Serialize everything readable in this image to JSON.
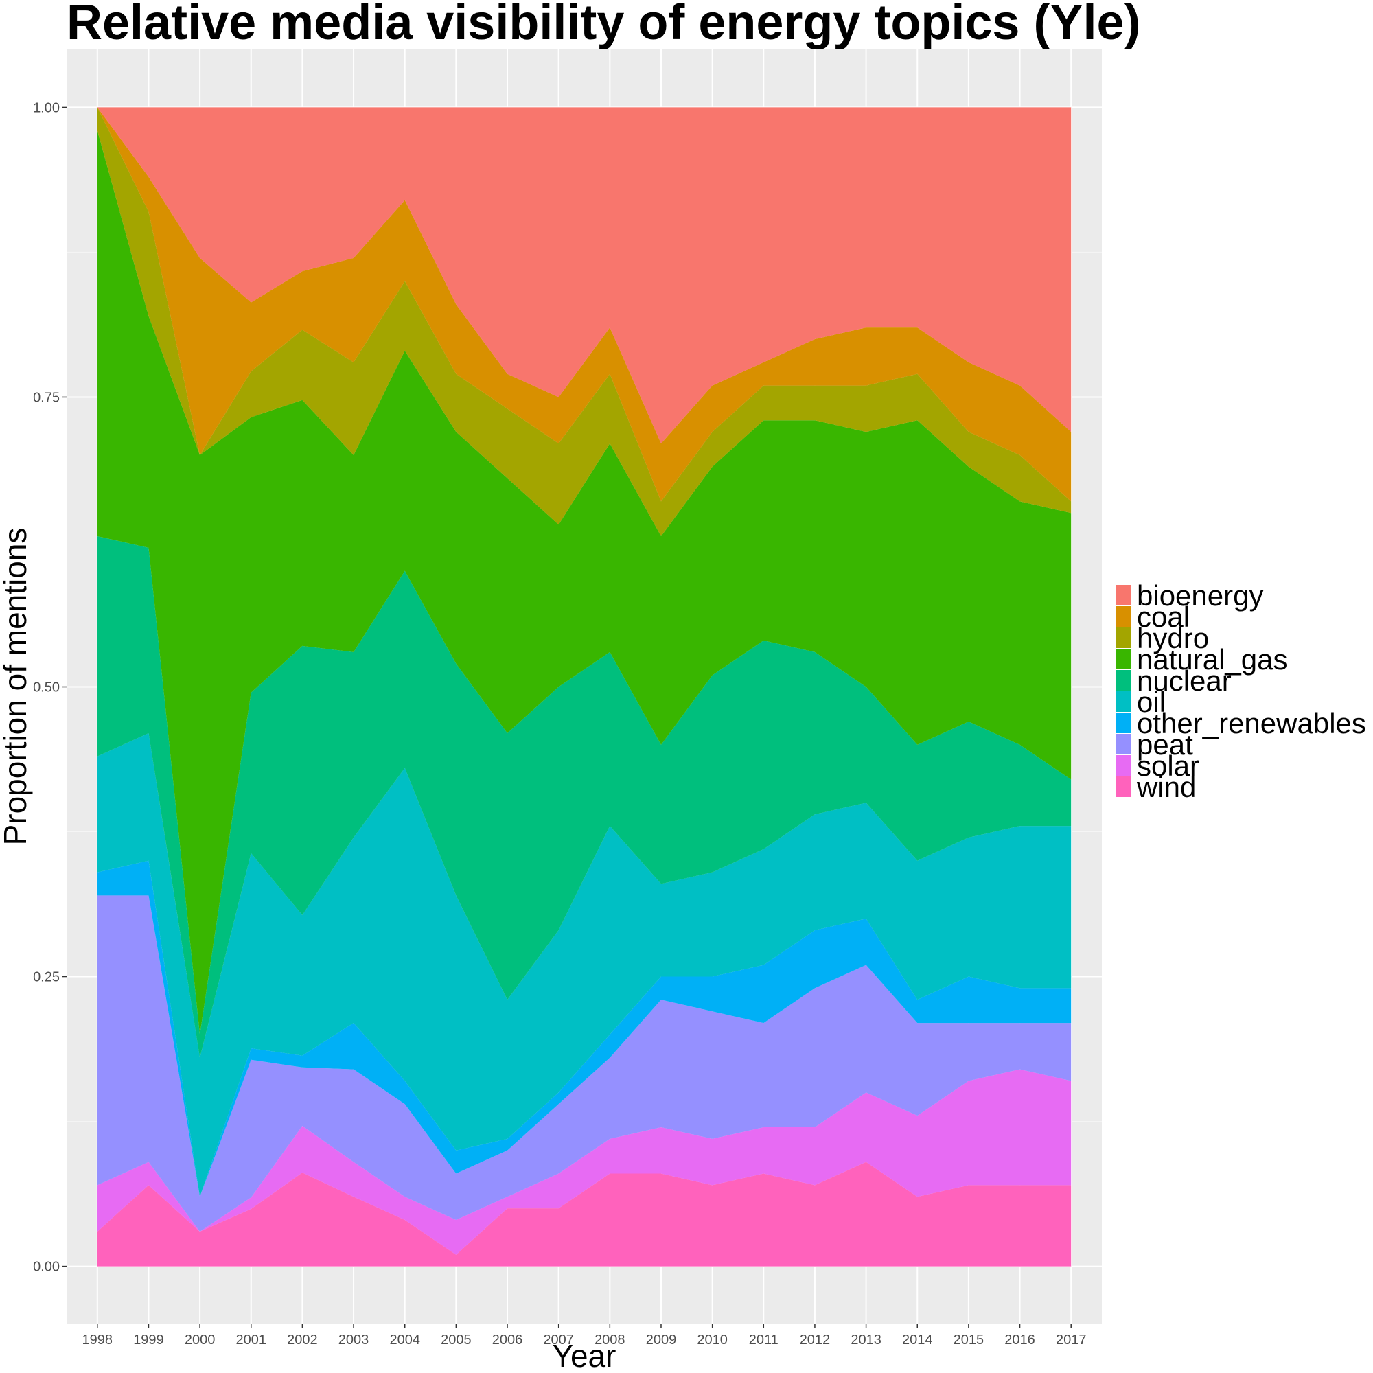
{
  "chart_data": {
    "type": "area",
    "stacked": true,
    "normalized": true,
    "title": "Relative media visibility of energy topics (Yle)",
    "xlabel": "Year",
    "ylabel": "Proportion of mentions",
    "x": [
      1998,
      1999,
      2000,
      2001,
      2002,
      2003,
      2004,
      2005,
      2006,
      2007,
      2008,
      2009,
      2010,
      2011,
      2012,
      2013,
      2014,
      2015,
      2016,
      2017
    ],
    "x_tick_labels": [
      "1998",
      "1999",
      "2000",
      "2001",
      "2002",
      "2003",
      "2004",
      "2005",
      "2006",
      "2007",
      "2008",
      "2009",
      "2010",
      "2011",
      "2012",
      "2013",
      "2014",
      "2015",
      "2016",
      "2017"
    ],
    "y_ticks": [
      0,
      0.25,
      0.5,
      0.75,
      1
    ],
    "y_tick_labels": [
      "0.00",
      "0.25",
      "0.50",
      "0.75",
      "1.00"
    ],
    "xlim": [
      1997.4,
      2017.6
    ],
    "ylim": [
      -0.05,
      1.05
    ],
    "grid": true,
    "legend_position": "right",
    "stack_order_bottom_to_top": [
      "wind",
      "solar",
      "peat",
      "other_renewables",
      "oil",
      "nuclear",
      "natural_gas",
      "hydro",
      "coal",
      "bioenergy"
    ],
    "series": [
      {
        "name": "bioenergy",
        "color": "#F8766D",
        "values": [
          0.0,
          0.06,
          0.13,
          0.17,
          0.14,
          0.13,
          0.08,
          0.17,
          0.23,
          0.25,
          0.19,
          0.29,
          0.24,
          0.22,
          0.2,
          0.19,
          0.19,
          0.22,
          0.24,
          0.28
        ]
      },
      {
        "name": "coal",
        "color": "#D89000",
        "values": [
          0.0,
          0.03,
          0.17,
          0.06,
          0.05,
          0.09,
          0.07,
          0.06,
          0.03,
          0.04,
          0.04,
          0.05,
          0.04,
          0.02,
          0.04,
          0.05,
          0.04,
          0.06,
          0.06,
          0.06
        ]
      },
      {
        "name": "hydro",
        "color": "#A3A500",
        "values": [
          0.02,
          0.09,
          0.0,
          0.04,
          0.06,
          0.08,
          0.06,
          0.05,
          0.06,
          0.07,
          0.06,
          0.03,
          0.03,
          0.03,
          0.03,
          0.04,
          0.04,
          0.03,
          0.04,
          0.01
        ]
      },
      {
        "name": "natural_gas",
        "color": "#39B600",
        "values": [
          0.35,
          0.2,
          0.5,
          0.24,
          0.21,
          0.17,
          0.19,
          0.2,
          0.22,
          0.14,
          0.18,
          0.18,
          0.18,
          0.19,
          0.2,
          0.22,
          0.28,
          0.22,
          0.21,
          0.23
        ]
      },
      {
        "name": "nuclear",
        "color": "#00BF7D",
        "values": [
          0.19,
          0.16,
          0.02,
          0.14,
          0.23,
          0.16,
          0.17,
          0.2,
          0.23,
          0.21,
          0.15,
          0.12,
          0.17,
          0.18,
          0.14,
          0.1,
          0.1,
          0.1,
          0.07,
          0.04
        ]
      },
      {
        "name": "oil",
        "color": "#00BFC4",
        "values": [
          0.1,
          0.11,
          0.12,
          0.17,
          0.12,
          0.16,
          0.27,
          0.22,
          0.12,
          0.14,
          0.18,
          0.08,
          0.09,
          0.1,
          0.1,
          0.1,
          0.12,
          0.12,
          0.14,
          0.14
        ]
      },
      {
        "name": "other_renewables",
        "color": "#00B0F6",
        "values": [
          0.02,
          0.03,
          0.0,
          0.01,
          0.01,
          0.04,
          0.02,
          0.02,
          0.01,
          0.01,
          0.02,
          0.02,
          0.03,
          0.05,
          0.05,
          0.04,
          0.02,
          0.04,
          0.03,
          0.03
        ]
      },
      {
        "name": "peat",
        "color": "#9590FF",
        "values": [
          0.25,
          0.23,
          0.03,
          0.12,
          0.05,
          0.08,
          0.08,
          0.04,
          0.04,
          0.06,
          0.07,
          0.11,
          0.11,
          0.09,
          0.12,
          0.11,
          0.08,
          0.05,
          0.04,
          0.05
        ]
      },
      {
        "name": "solar",
        "color": "#E76BF3",
        "values": [
          0.04,
          0.02,
          0.0,
          0.01,
          0.04,
          0.03,
          0.02,
          0.03,
          0.01,
          0.03,
          0.03,
          0.04,
          0.04,
          0.04,
          0.05,
          0.06,
          0.07,
          0.09,
          0.1,
          0.09
        ]
      },
      {
        "name": "wind",
        "color": "#FF62BC",
        "values": [
          0.03,
          0.07,
          0.03,
          0.05,
          0.08,
          0.06,
          0.04,
          0.01,
          0.05,
          0.05,
          0.08,
          0.08,
          0.07,
          0.08,
          0.07,
          0.09,
          0.06,
          0.07,
          0.07,
          0.07
        ]
      }
    ]
  }
}
